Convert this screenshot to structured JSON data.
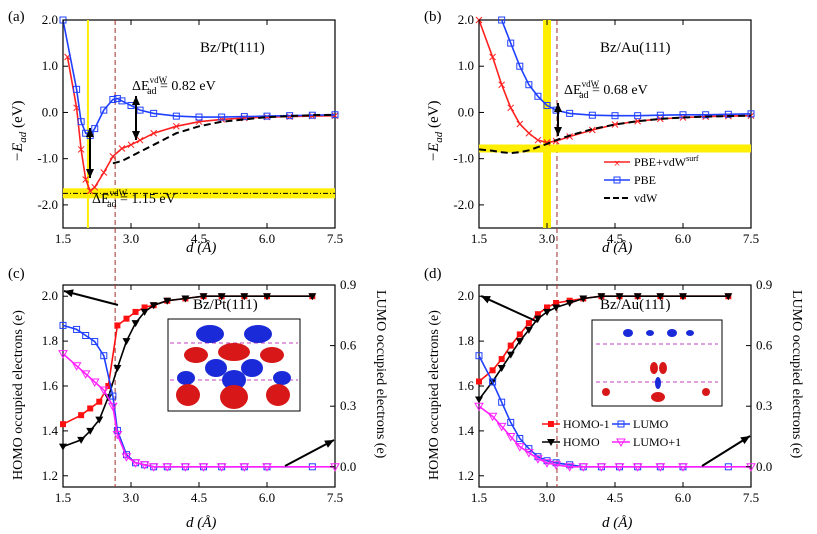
{
  "chart_data": [
    {
      "panel": "(a)",
      "type": "line",
      "title": "Bz/Pt(111)",
      "xlabel": "d (Å)",
      "ylabel": "−E_ad (eV)",
      "xlim": [
        1.5,
        7.5
      ],
      "ylim": [
        -2.5,
        2.0
      ],
      "xticks": [
        "1.5",
        "3.0",
        "4.5",
        "6.0",
        "7.5"
      ],
      "yticks": [
        "2.0",
        "1.0",
        "0.0",
        "-1.0",
        "-2.0"
      ],
      "annotations": [
        "ΔE_ad^vdW = 0.82 eV",
        "ΔE_ad^vdW = 1.15 eV"
      ],
      "series": [
        {
          "name": "PBE+vdW^surf",
          "color": "#ff2020",
          "marker": "x",
          "x": [
            1.6,
            1.8,
            1.9,
            2.0,
            2.1,
            2.2,
            2.4,
            2.6,
            2.8,
            3.0,
            3.2,
            3.5,
            4.0,
            4.5,
            5.0,
            5.5,
            6.0,
            6.5,
            7.0,
            7.5
          ],
          "y": [
            1.2,
            0.1,
            -0.8,
            -1.45,
            -1.7,
            -1.62,
            -1.3,
            -0.95,
            -0.78,
            -0.7,
            -0.6,
            -0.45,
            -0.3,
            -0.2,
            -0.15,
            -0.12,
            -0.1,
            -0.09,
            -0.08,
            -0.07
          ]
        },
        {
          "name": "PBE",
          "color": "#2040ff",
          "marker": "square",
          "x": [
            1.5,
            1.8,
            1.9,
            2.0,
            2.1,
            2.2,
            2.4,
            2.6,
            2.7,
            2.8,
            3.0,
            3.2,
            3.5,
            4.0,
            4.5,
            5.0,
            5.5,
            6.0,
            6.5,
            7.0,
            7.5
          ],
          "y": [
            2.1,
            0.5,
            -0.2,
            -0.45,
            -0.5,
            -0.35,
            0.05,
            0.28,
            0.3,
            0.25,
            0.15,
            0.05,
            -0.02,
            -0.08,
            -0.1,
            -0.1,
            -0.09,
            -0.08,
            -0.07,
            -0.06,
            -0.05
          ]
        },
        {
          "name": "vdW",
          "color": "#000000",
          "marker": "none",
          "dash": true,
          "x": [
            2.6,
            2.8,
            3.0,
            3.2,
            3.5,
            4.0,
            4.5,
            5.0,
            5.5,
            6.0,
            6.5,
            7.0,
            7.5
          ],
          "y": [
            -1.1,
            -1.05,
            -0.95,
            -0.85,
            -0.7,
            -0.45,
            -0.3,
            -0.2,
            -0.15,
            -0.1,
            -0.08,
            -0.06,
            -0.05
          ]
        }
      ]
    },
    {
      "panel": "(b)",
      "type": "line",
      "title": "Bz/Au(111)",
      "xlabel": "d (Å)",
      "ylabel": "−E_ad (eV)",
      "xlim": [
        1.5,
        7.5
      ],
      "ylim": [
        -2.5,
        2.0
      ],
      "xticks": [
        "1.5",
        "3.0",
        "4.5",
        "6.0",
        "7.5"
      ],
      "yticks": [
        "2.0",
        "1.0",
        "0.0",
        "-1.0",
        "-2.0"
      ],
      "annotations": [
        "ΔE_ad^vdW = 0.68 eV"
      ],
      "legend": [
        "PBE+vdW^surf",
        "PBE",
        "vdW"
      ],
      "series": [
        {
          "name": "PBE+vdW^surf",
          "color": "#ff2020",
          "marker": "x",
          "x": [
            1.5,
            1.8,
            2.0,
            2.2,
            2.4,
            2.6,
            2.8,
            3.0,
            3.2,
            3.5,
            4.0,
            4.5,
            5.0,
            5.5,
            6.0,
            6.5,
            7.0,
            7.5
          ],
          "y": [
            2.1,
            1.2,
            0.6,
            0.1,
            -0.25,
            -0.45,
            -0.6,
            -0.65,
            -0.62,
            -0.52,
            -0.38,
            -0.26,
            -0.19,
            -0.14,
            -0.11,
            -0.09,
            -0.08,
            -0.07
          ]
        },
        {
          "name": "PBE",
          "color": "#2040ff",
          "marker": "square",
          "x": [
            2.0,
            2.2,
            2.4,
            2.6,
            2.8,
            3.0,
            3.2,
            3.5,
            4.0,
            4.5,
            5.0,
            5.5,
            6.0,
            6.5,
            7.0,
            7.5
          ],
          "y": [
            2.1,
            1.5,
            1.0,
            0.6,
            0.35,
            0.15,
            0.05,
            -0.02,
            -0.06,
            -0.07,
            -0.07,
            -0.06,
            -0.05,
            -0.05,
            -0.04,
            -0.03
          ]
        },
        {
          "name": "vdW",
          "color": "#000000",
          "marker": "none",
          "dash": true,
          "x": [
            1.5,
            1.8,
            2.0,
            2.2,
            2.4,
            2.6,
            2.8,
            3.0,
            3.2,
            3.5,
            4.0,
            4.5,
            5.0,
            5.5,
            6.0,
            6.5,
            7.0,
            7.5
          ],
          "y": [
            -0.8,
            -0.83,
            -0.86,
            -0.88,
            -0.86,
            -0.82,
            -0.75,
            -0.68,
            -0.6,
            -0.5,
            -0.36,
            -0.26,
            -0.19,
            -0.14,
            -0.11,
            -0.09,
            -0.08,
            -0.07
          ]
        }
      ]
    },
    {
      "panel": "(c)",
      "type": "line",
      "title": "Bz/Pt(111)",
      "xlabel": "d (Å)",
      "ylabel": "HOMO occupied electrons (e)",
      "y2label": "LUMO occupied electrons (e)",
      "xlim": [
        1.5,
        7.5
      ],
      "ylim": [
        1.15,
        2.05
      ],
      "y2lim": [
        -0.1,
        0.9
      ],
      "xticks": [
        "1.5",
        "3.0",
        "4.5",
        "6.0",
        "7.5"
      ],
      "yticks": [
        "2.0",
        "1.8",
        "1.6",
        "1.4",
        "1.2"
      ],
      "y2ticks": [
        "0.9",
        "0.6",
        "0.3",
        "0.0"
      ],
      "series": [
        {
          "name": "HOMO-1",
          "color": "#ff1010",
          "marker": "square-filled",
          "x": [
            1.5,
            1.9,
            2.1,
            2.3,
            2.5,
            2.7,
            2.9,
            3.1,
            3.3,
            3.5,
            3.8,
            4.2,
            4.6,
            5.0,
            5.5,
            6.0,
            7.0
          ],
          "y": [
            1.43,
            1.47,
            1.5,
            1.53,
            1.6,
            1.87,
            1.9,
            1.93,
            1.95,
            1.96,
            1.98,
            1.99,
            2.0,
            2.0,
            2.0,
            2.0,
            2.0
          ]
        },
        {
          "name": "HOMO",
          "color": "#000000",
          "marker": "triangle-down",
          "x": [
            1.5,
            1.9,
            2.1,
            2.3,
            2.5,
            2.7,
            2.9,
            3.1,
            3.3,
            3.5,
            3.8,
            4.2,
            4.6,
            5.0,
            5.5,
            6.0,
            7.0
          ],
          "y": [
            1.33,
            1.36,
            1.4,
            1.45,
            1.55,
            1.68,
            1.8,
            1.88,
            1.93,
            1.96,
            1.98,
            1.99,
            2.0,
            2.0,
            2.0,
            2.0,
            2.0
          ]
        },
        {
          "name": "LUMO",
          "color": "#2040ff",
          "marker": "square",
          "axis": "right",
          "x": [
            1.5,
            1.8,
            2.0,
            2.2,
            2.4,
            2.6,
            2.7,
            2.9,
            3.1,
            3.3,
            3.5,
            3.8,
            4.2,
            4.6,
            5.0,
            5.5,
            6.0,
            7.0
          ],
          "y": [
            0.7,
            0.68,
            0.65,
            0.62,
            0.55,
            0.35,
            0.18,
            0.06,
            0.02,
            0.01,
            0.0,
            0.0,
            0.0,
            0.0,
            0.0,
            0.0,
            0.0,
            0.0
          ]
        },
        {
          "name": "LUMO+1",
          "color": "#ff20ff",
          "marker": "triangle-down-open",
          "axis": "right",
          "x": [
            1.5,
            1.8,
            2.0,
            2.2,
            2.4,
            2.6,
            2.7,
            2.9,
            3.1,
            3.3,
            3.5,
            3.8,
            4.2,
            4.6,
            5.0,
            5.5,
            6.0,
            7.5
          ],
          "y": [
            0.56,
            0.5,
            0.46,
            0.42,
            0.38,
            0.3,
            0.16,
            0.05,
            0.02,
            0.01,
            0.0,
            0.0,
            0.0,
            0.0,
            0.0,
            0.0,
            0.0,
            0.0
          ]
        }
      ]
    },
    {
      "panel": "(d)",
      "type": "line",
      "title": "Bz/Au(111)",
      "xlabel": "d (Å)",
      "ylabel": "HOMO occupied electrons (e)",
      "y2label": "LUMO occupied electrons (e)",
      "xlim": [
        1.5,
        7.5
      ],
      "ylim": [
        1.15,
        2.05
      ],
      "y2lim": [
        -0.1,
        0.9
      ],
      "xticks": [
        "1.5",
        "3.0",
        "4.5",
        "6.0",
        "7.5"
      ],
      "yticks": [
        "2.0",
        "1.8",
        "1.6",
        "1.4",
        "1.2"
      ],
      "y2ticks": [
        "0.9",
        "0.6",
        "0.3",
        "0.0"
      ],
      "legend": [
        "HOMO-1",
        "LUMO",
        "HOMO",
        "LUMO+1"
      ],
      "series": [
        {
          "name": "HOMO-1",
          "color": "#ff1010",
          "marker": "square-filled",
          "x": [
            1.5,
            1.8,
            2.0,
            2.2,
            2.4,
            2.6,
            2.8,
            3.0,
            3.2,
            3.5,
            3.8,
            4.2,
            4.6,
            5.0,
            5.5,
            6.0,
            7.0
          ],
          "y": [
            1.62,
            1.67,
            1.72,
            1.78,
            1.83,
            1.88,
            1.92,
            1.95,
            1.97,
            1.98,
            1.99,
            2.0,
            2.0,
            2.0,
            2.0,
            2.0,
            2.0
          ]
        },
        {
          "name": "HOMO",
          "color": "#000000",
          "marker": "triangle-down",
          "x": [
            1.5,
            1.8,
            2.0,
            2.2,
            2.4,
            2.6,
            2.8,
            3.0,
            3.2,
            3.5,
            3.8,
            4.2,
            4.6,
            5.0,
            5.5,
            6.0,
            7.0
          ],
          "y": [
            1.54,
            1.62,
            1.68,
            1.74,
            1.8,
            1.85,
            1.9,
            1.93,
            1.95,
            1.97,
            1.99,
            2.0,
            2.0,
            2.0,
            2.0,
            2.0,
            2.0
          ]
        },
        {
          "name": "LUMO",
          "color": "#2040ff",
          "marker": "square",
          "axis": "right",
          "x": [
            1.5,
            1.8,
            2.0,
            2.2,
            2.4,
            2.6,
            2.8,
            3.0,
            3.2,
            3.5,
            3.8,
            4.2,
            4.6,
            5.0,
            5.5,
            6.0,
            7.0
          ],
          "y": [
            0.55,
            0.42,
            0.32,
            0.22,
            0.14,
            0.09,
            0.05,
            0.03,
            0.02,
            0.01,
            0.0,
            0.0,
            0.0,
            0.0,
            0.0,
            0.0,
            0.0
          ]
        },
        {
          "name": "LUMO+1",
          "color": "#ff20ff",
          "marker": "triangle-down-open",
          "axis": "right",
          "x": [
            1.5,
            1.8,
            2.0,
            2.2,
            2.4,
            2.6,
            2.8,
            3.0,
            3.2,
            3.5,
            3.8,
            4.2,
            4.6,
            5.0,
            5.5,
            6.0,
            7.5
          ],
          "y": [
            0.3,
            0.25,
            0.2,
            0.15,
            0.1,
            0.07,
            0.04,
            0.02,
            0.01,
            0.0,
            0.0,
            0.0,
            0.0,
            0.0,
            0.0,
            0.0,
            0.0
          ]
        }
      ]
    }
  ],
  "labels": {
    "a": "(a)",
    "b": "(b)",
    "c": "(c)",
    "d": "(d)",
    "sys_pt": "Bz/Pt(111)",
    "sys_au": "Bz/Au(111)",
    "xlabel": "d (Å)",
    "ylab_e": "−E",
    "ylab_e_sub": "ad",
    "ylab_e_unit": " (eV)",
    "ylab_homo": "HOMO occupied electrons (e)",
    "ylab_lumo": "LUMO occupied electrons (e)",
    "ann_a1_pre": "ΔE",
    "ann_a1_sub": "ad",
    "ann_a1_sup": "vdW",
    "ann_a1_val": " = 0.82 eV",
    "ann_a2_val": " = 1.15 eV",
    "ann_b_val": " = 0.68 eV",
    "leg_pbevdw": "PBE+vdW",
    "leg_pbevdw_sup": "surf",
    "leg_pbe": "PBE",
    "leg_vdw": "vdW",
    "leg_homo1": "HOMO-1",
    "leg_lumo": "LUMO",
    "leg_homo": "HOMO",
    "leg_lumo1": "LUMO+1"
  },
  "colors": {
    "red": "#ff2020",
    "blue": "#2040ff",
    "black": "#000000",
    "magenta": "#ff20ff",
    "yellow": "#ffee00",
    "dashed_ref": "#a0302a"
  }
}
